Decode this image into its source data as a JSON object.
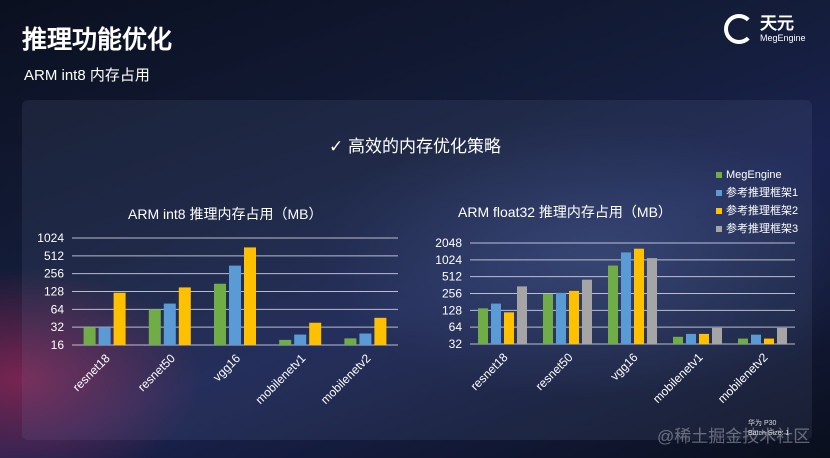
{
  "slide": {
    "title": "推理功能优化",
    "subtitle": "ARM int8 内存占用",
    "headline": "✓ 高效的内存优化策略",
    "watermark": "@稀土掘金技术社区",
    "note_line1": "华为 P30",
    "note_line2": "Batch Size: 1"
  },
  "logo": {
    "name": "天元",
    "brand": "MegEngine"
  },
  "legend": [
    {
      "name": "MegEngine",
      "color": "#70ad47"
    },
    {
      "name": "参考推理框架1",
      "color": "#5b9bd5"
    },
    {
      "name": "参考推理框架2",
      "color": "#ffc000"
    },
    {
      "name": "参考推理框架3",
      "color": "#a5a5a5"
    }
  ],
  "chart_data": [
    {
      "type": "bar",
      "title": "ARM int8 推理内存占用（MB）",
      "yscale": "log2",
      "ylim": [
        16,
        1024
      ],
      "yticks": [
        "16",
        "32",
        "64",
        "128",
        "256",
        "512",
        "1024"
      ],
      "categories": [
        "resnet18",
        "resnet50",
        "vgg16",
        "mobilenetv1",
        "mobilenetv2"
      ],
      "series": [
        {
          "name": "MegEngine",
          "values": [
            32,
            64,
            173,
            19.5,
            20.7
          ]
        },
        {
          "name": "参考推理框架1",
          "values": [
            32,
            80,
            350,
            24,
            25
          ]
        },
        {
          "name": "参考推理框架2",
          "values": [
            122,
            150,
            710,
            38,
            46
          ]
        }
      ]
    },
    {
      "type": "bar",
      "title": "ARM float32 推理内存占用（MB）",
      "yscale": "log2",
      "ylim": [
        32,
        2048
      ],
      "yticks": [
        "32",
        "64",
        "128",
        "256",
        "512",
        "1024",
        "2048"
      ],
      "categories": [
        "resnet18",
        "resnet50",
        "vgg16",
        "mobilenetv1",
        "mobilenetv2"
      ],
      "series": [
        {
          "name": "MegEngine",
          "values": [
            139,
            250,
            810,
            43,
            40
          ]
        },
        {
          "name": "参考推理框架1",
          "values": [
            169,
            263,
            1390,
            48.5,
            47
          ]
        },
        {
          "name": "参考推理框架2",
          "values": [
            118,
            285,
            1620,
            48.5,
            40
          ]
        },
        {
          "name": "参考推理框架3",
          "values": [
            343,
            452,
            1100,
            62,
            62
          ]
        }
      ]
    }
  ]
}
